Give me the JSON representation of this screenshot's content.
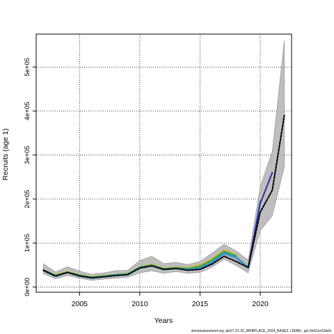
{
  "chart_data": {
    "type": "line",
    "xlabel": "Years",
    "ylabel": "Recruits (age 1)",
    "xlim": [
      2001.4,
      2022.6
    ],
    "ylim": [
      -12000,
      575000
    ],
    "xticks": [
      {
        "value": 2005,
        "label": "2005"
      },
      {
        "value": 2010,
        "label": "2010"
      },
      {
        "value": 2015,
        "label": "2015"
      },
      {
        "value": 2020,
        "label": "2020"
      }
    ],
    "yticks": [
      {
        "value": 0,
        "label": "0e+00"
      },
      {
        "value": 100000,
        "label": "1e+05"
      },
      {
        "value": 200000,
        "label": "2e+05"
      },
      {
        "value": 300000,
        "label": "3e+05"
      },
      {
        "value": 400000,
        "label": "4e+05"
      },
      {
        "value": 500000,
        "label": "5e+05"
      }
    ],
    "grid": true,
    "grid_style": "dotted",
    "band": {
      "x": [
        2002,
        2003,
        2004,
        2005,
        2006,
        2007,
        2008,
        2009,
        2010,
        2011,
        2012,
        2013,
        2014,
        2015,
        2016,
        2017,
        2018,
        2019,
        2020,
        2021,
        2022
      ],
      "upper": [
        53000,
        34000,
        46000,
        36000,
        29000,
        32000,
        37000,
        38000,
        60000,
        70000,
        53000,
        56000,
        51000,
        58000,
        77000,
        97000,
        82000,
        61000,
        228000,
        308000,
        560000
      ],
      "lower": [
        30000,
        19000,
        26000,
        20000,
        15000,
        18000,
        20000,
        22000,
        32000,
        37000,
        31000,
        35000,
        31000,
        33000,
        45000,
        63000,
        49000,
        32000,
        128000,
        162000,
        273000
      ],
      "color": "#bebebe"
    },
    "series": [
      {
        "color": "#d4b52b",
        "width": 2,
        "x": [
          2002,
          2003,
          2004,
          2005,
          2006,
          2007,
          2008,
          2009,
          2010,
          2011,
          2012,
          2013,
          2014,
          2015,
          2016,
          2017,
          2018
        ],
        "values": [
          38000,
          27000,
          35000,
          28000,
          23000,
          26000,
          28000,
          31000,
          46000,
          52000,
          42000,
          45000,
          44000,
          50000,
          64000,
          84000,
          73000
        ]
      },
      {
        "color": "#3aa642",
        "width": 2,
        "x": [
          2002,
          2003,
          2004,
          2005,
          2006,
          2007,
          2008,
          2009,
          2010,
          2011,
          2012,
          2013,
          2014,
          2015,
          2016,
          2017,
          2018
        ],
        "values": [
          39000,
          26000,
          34000,
          27000,
          22000,
          25000,
          28000,
          30000,
          45000,
          50000,
          41000,
          44000,
          42000,
          47000,
          61000,
          81000,
          71000
        ]
      },
      {
        "color": "#23a5a5",
        "width": 2,
        "x": [
          2002,
          2003,
          2004,
          2005,
          2006,
          2007,
          2008,
          2009,
          2010,
          2011,
          2012,
          2013,
          2014,
          2015,
          2016,
          2017,
          2018,
          2019
        ],
        "values": [
          38000,
          25000,
          33000,
          26000,
          21000,
          24000,
          27000,
          29000,
          44000,
          49000,
          40000,
          43000,
          40000,
          44000,
          57000,
          78000,
          68000,
          45000
        ]
      },
      {
        "color": "#3a8fd9",
        "width": 2,
        "x": [
          2002,
          2003,
          2004,
          2005,
          2006,
          2007,
          2008,
          2009,
          2010,
          2011,
          2012,
          2013,
          2014,
          2015,
          2016,
          2017,
          2018,
          2019,
          2020
        ],
        "values": [
          37000,
          24000,
          33000,
          25000,
          20000,
          23000,
          26000,
          28000,
          43000,
          48000,
          39000,
          42000,
          39000,
          42000,
          55000,
          76000,
          66000,
          44000,
          196000
        ]
      },
      {
        "color": "#2c2ca8",
        "width": 2,
        "x": [
          2019,
          2020,
          2021
        ],
        "values": [
          45000,
          190000,
          260000
        ]
      },
      {
        "color": "#000000",
        "width": 2,
        "dash": "3,2",
        "x": [
          2002,
          2003,
          2004,
          2005,
          2006,
          2007,
          2008,
          2009,
          2010,
          2011,
          2012,
          2013,
          2014,
          2015,
          2016,
          2017,
          2018,
          2019,
          2020,
          2021,
          2022
        ],
        "values": [
          38000,
          25000,
          33000,
          25000,
          21000,
          23000,
          26000,
          28000,
          43000,
          48000,
          40000,
          42000,
          38000,
          40000,
          52000,
          70000,
          58000,
          44000,
          170000,
          220000,
          390000
        ]
      }
    ]
  },
  "footer": "stockassessment.org, ple27.21-32_WKBPLACE_2024_BASE2, r18380 , git:c9c61ec53a0d"
}
